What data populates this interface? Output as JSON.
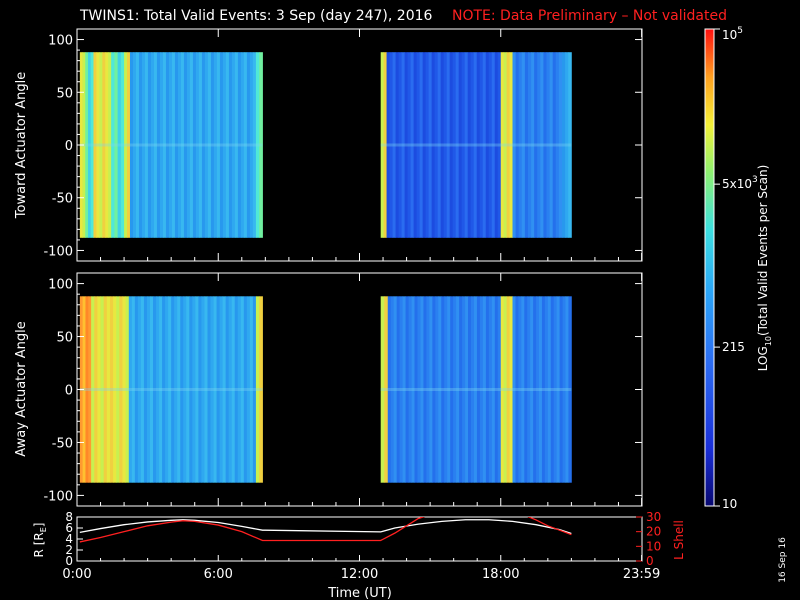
{
  "title": {
    "main": "TWINS1: Total Valid Events:  3 Sep (day 247), 2016",
    "note": "NOTE: Data Preliminary – Not validated"
  },
  "colors": {
    "background": "#000000",
    "foreground": "#ffffff",
    "note": "#ff2020",
    "lshell": "#ff2020",
    "radius": "#ffffff"
  },
  "footer_date": "16 Sep 16",
  "chart_data": [
    {
      "type": "heatmap",
      "ylabel": "Toward Actuator Angle",
      "ylim": [
        -110,
        110
      ],
      "yticks": [
        100,
        50,
        0,
        -50,
        -100
      ],
      "xlim_hours": [
        0,
        24
      ],
      "data_y_range": [
        -88,
        88
      ],
      "segments": [
        {
          "start_hours": 0.12,
          "end_hours": 7.88,
          "bands": [
            {
              "from": 0.12,
              "to": 0.35,
              "level": "high"
            },
            {
              "from": 0.35,
              "to": 0.7,
              "level": "mid-high"
            },
            {
              "from": 0.7,
              "to": 1.45,
              "level": "high"
            },
            {
              "from": 1.45,
              "to": 2.0,
              "level": "mid-high"
            },
            {
              "from": 2.0,
              "to": 2.25,
              "level": "high"
            },
            {
              "from": 2.25,
              "to": 7.6,
              "level": "mid"
            },
            {
              "from": 7.6,
              "to": 7.88,
              "level": "mid-high"
            }
          ]
        },
        {
          "start_hours": 12.9,
          "end_hours": 21.0,
          "bands": [
            {
              "from": 12.9,
              "to": 13.15,
              "level": "high"
            },
            {
              "from": 13.15,
              "to": 18.0,
              "level": "low"
            },
            {
              "from": 18.0,
              "to": 18.5,
              "level": "high"
            },
            {
              "from": 18.5,
              "to": 20.6,
              "level": "low-mid"
            },
            {
              "from": 20.6,
              "to": 21.0,
              "level": "mid"
            }
          ]
        }
      ]
    },
    {
      "type": "heatmap",
      "ylabel": "Away Actuator Angle",
      "ylim": [
        -110,
        110
      ],
      "yticks": [
        100,
        50,
        0,
        -50,
        -100
      ],
      "xlim_hours": [
        0,
        24
      ],
      "data_y_range": [
        -88,
        88
      ],
      "segments": [
        {
          "start_hours": 0.12,
          "end_hours": 7.88,
          "bands": [
            {
              "from": 0.12,
              "to": 0.6,
              "level": "very-high"
            },
            {
              "from": 0.6,
              "to": 1.4,
              "level": "high"
            },
            {
              "from": 1.4,
              "to": 2.2,
              "level": "high"
            },
            {
              "from": 2.2,
              "to": 7.6,
              "level": "mid"
            },
            {
              "from": 7.6,
              "to": 7.88,
              "level": "high"
            }
          ]
        },
        {
          "start_hours": 12.9,
          "end_hours": 21.0,
          "bands": [
            {
              "from": 12.9,
              "to": 13.2,
              "level": "high"
            },
            {
              "from": 13.2,
              "to": 18.0,
              "level": "low-mid"
            },
            {
              "from": 18.0,
              "to": 18.5,
              "level": "high"
            },
            {
              "from": 18.5,
              "to": 21.0,
              "level": "low-mid"
            }
          ]
        }
      ]
    },
    {
      "type": "line",
      "ylabel_left": "R [R",
      "ylabel_left_sub": "E",
      "ylabel_left_close": "]",
      "ylabel_right": "L Shell",
      "xlabel": "Time (UT)",
      "x_ticks": [
        "0:00",
        "6:00",
        "12:00",
        "18:00",
        "23:59"
      ],
      "x_tick_hours": [
        0,
        6,
        12,
        18,
        23.983
      ],
      "ylim_left": [
        0,
        8
      ],
      "yticks_left": [
        8,
        6,
        4,
        2,
        0
      ],
      "ylim_right": [
        0,
        30
      ],
      "yticks_right": [
        30,
        20,
        10,
        0
      ],
      "series": [
        {
          "axis": "left",
          "x_hours": [
            0.12,
            1.0,
            2.0,
            3.0,
            4.0,
            4.5,
            5.0,
            6.0,
            7.0,
            7.88,
            8.0,
            12.9,
            13.5,
            14.5,
            15.5,
            16.5,
            17.5,
            18.5,
            19.5,
            20.5,
            21.0
          ],
          "values": [
            5.2,
            5.9,
            6.6,
            7.1,
            7.4,
            7.5,
            7.4,
            7.0,
            6.3,
            5.6,
            5.6,
            5.3,
            6.0,
            6.7,
            7.2,
            7.5,
            7.5,
            7.2,
            6.6,
            5.7,
            5.0
          ]
        },
        {
          "axis": "right",
          "x_hours": [
            0.12,
            1.0,
            2.0,
            3.0,
            4.0,
            4.5,
            5.0,
            6.0,
            7.0,
            7.88,
            8.0,
            12.9,
            13.5,
            14.0,
            14.5,
            14.9
          ],
          "values": [
            13,
            16,
            20,
            24,
            26.5,
            27.5,
            27,
            24.5,
            20,
            14,
            14,
            14,
            19,
            24,
            29,
            31
          ]
        },
        {
          "axis": "right",
          "x_hours": [
            19.05,
            19.5,
            20.0,
            20.5,
            21.0
          ],
          "values": [
            31,
            28,
            24,
            21,
            18
          ]
        }
      ]
    },
    {
      "type": "colorbar",
      "label_main": "LOG",
      "label_sub": "10",
      "label_rest": "(Total Valid Events per Scan)",
      "ticks": [
        "10",
        "215",
        "5x10",
        "10"
      ],
      "tick_exponents": [
        "",
        "",
        "3",
        "5"
      ],
      "tick_values": [
        10,
        215,
        5000,
        100000
      ],
      "range": [
        10,
        100000
      ],
      "scale": "log"
    }
  ]
}
